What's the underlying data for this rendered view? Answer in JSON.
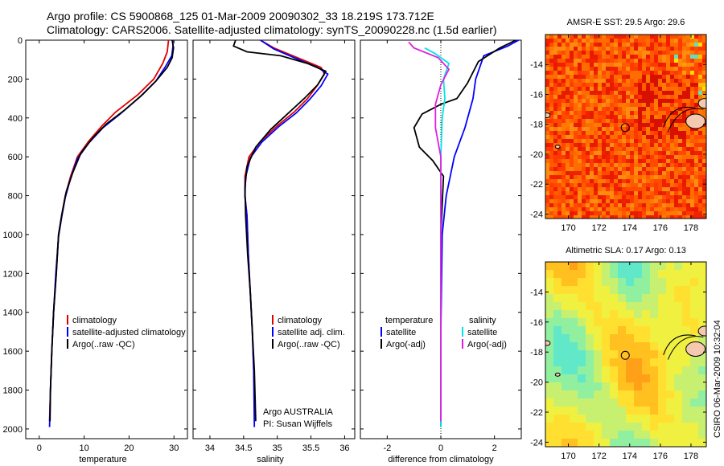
{
  "header": {
    "line1": "Argo profile: CS 5900868_125 01-Mar-2009 20090302_33 18.219S 173.712E",
    "line2": "Climatology: CARS2006. Satellite-adjusted climatology: synTS_20090228.nc (1.5d earlier)"
  },
  "footer": {
    "org": "Argo AUSTRALIA",
    "pi": "PI: Susan Wijffels",
    "credit": "CSIRO 06-Mar-2009 10:32:04"
  },
  "chart_data": [
    {
      "id": "temperature",
      "type": "line",
      "xlabel": "temperature",
      "xlim": [
        -3,
        33
      ],
      "ylim": [
        0,
        2050
      ],
      "xticks": [
        0,
        10,
        20,
        30
      ],
      "yticks": [
        0,
        200,
        400,
        600,
        800,
        1000,
        1200,
        1400,
        1600,
        1800,
        2000
      ],
      "legend": [
        "climatology",
        "satellite-adjusted climatology",
        "Argo(..raw -QC)"
      ],
      "series": [
        {
          "name": "climatology",
          "color": "#e00000",
          "points": [
            [
              28.8,
              0
            ],
            [
              28.5,
              60
            ],
            [
              27.5,
              120
            ],
            [
              25.5,
              200
            ],
            [
              22,
              280
            ],
            [
              17,
              370
            ],
            [
              14,
              440
            ],
            [
              11,
              520
            ],
            [
              8.5,
              600
            ],
            [
              7,
              700
            ],
            [
              5.8,
              800
            ],
            [
              5,
              900
            ],
            [
              4.3,
              1000
            ],
            [
              3.8,
              1200
            ],
            [
              3.2,
              1400
            ],
            [
              2.8,
              1600
            ],
            [
              2.5,
              1800
            ],
            [
              2.3,
              1960
            ]
          ]
        },
        {
          "name": "satellite-adjusted climatology",
          "color": "#0000ff",
          "points": [
            [
              29.7,
              0
            ],
            [
              29.8,
              30
            ],
            [
              29.5,
              80
            ],
            [
              28,
              140
            ],
            [
              26,
              210
            ],
            [
              22.5,
              290
            ],
            [
              18,
              380
            ],
            [
              14.2,
              450
            ],
            [
              11,
              530
            ],
            [
              8.5,
              610
            ],
            [
              7,
              710
            ],
            [
              5.8,
              810
            ],
            [
              5,
              910
            ],
            [
              4.3,
              1010
            ],
            [
              3.7,
              1200
            ],
            [
              3.2,
              1400
            ],
            [
              2.8,
              1600
            ],
            [
              2.5,
              1800
            ],
            [
              2.3,
              1990
            ]
          ]
        },
        {
          "name": "Argo(..raw -QC)",
          "color": "#000000",
          "points": [
            [
              29.6,
              0
            ],
            [
              29.9,
              40
            ],
            [
              29.6,
              90
            ],
            [
              28.5,
              140
            ],
            [
              26,
              210
            ],
            [
              23,
              280
            ],
            [
              19,
              360
            ],
            [
              15,
              430
            ],
            [
              12,
              500
            ],
            [
              9.3,
              580
            ],
            [
              7.5,
              680
            ],
            [
              6,
              780
            ],
            [
              5,
              900
            ],
            [
              4.3,
              1000
            ],
            [
              3.8,
              1200
            ],
            [
              3.2,
              1400
            ],
            [
              2.8,
              1600
            ],
            [
              2.5,
              1800
            ],
            [
              2.4,
              1960
            ]
          ]
        }
      ]
    },
    {
      "id": "salinity",
      "type": "line",
      "xlabel": "salinity",
      "xlim": [
        33.75,
        36.15
      ],
      "ylim": [
        0,
        2050
      ],
      "xticks": [
        34,
        34.5,
        35,
        35.5,
        36
      ],
      "legend": [
        "climatology",
        "satellite adj. clim.",
        "Argo(..raw -QC)"
      ],
      "series": [
        {
          "name": "climatology",
          "color": "#e00000",
          "points": [
            [
              34.75,
              0
            ],
            [
              34.95,
              40
            ],
            [
              35.3,
              90
            ],
            [
              35.65,
              140
            ],
            [
              35.7,
              175
            ],
            [
              35.6,
              230
            ],
            [
              35.45,
              300
            ],
            [
              35.25,
              370
            ],
            [
              35.0,
              440
            ],
            [
              34.75,
              520
            ],
            [
              34.58,
              600
            ],
            [
              34.52,
              700
            ],
            [
              34.52,
              800
            ],
            [
              34.55,
              900
            ],
            [
              34.57,
              1100
            ],
            [
              34.6,
              1300
            ],
            [
              34.63,
              1500
            ],
            [
              34.65,
              1700
            ],
            [
              34.67,
              1960
            ]
          ]
        },
        {
          "name": "satellite adj. clim.",
          "color": "#0000ff",
          "points": [
            [
              34.75,
              0
            ],
            [
              34.95,
              45
            ],
            [
              35.25,
              90
            ],
            [
              35.6,
              140
            ],
            [
              35.75,
              175
            ],
            [
              35.65,
              235
            ],
            [
              35.48,
              305
            ],
            [
              35.28,
              375
            ],
            [
              35.02,
              445
            ],
            [
              34.77,
              525
            ],
            [
              34.6,
              605
            ],
            [
              34.53,
              705
            ],
            [
              34.52,
              805
            ],
            [
              34.55,
              905
            ],
            [
              34.57,
              1105
            ],
            [
              34.6,
              1305
            ],
            [
              34.63,
              1505
            ],
            [
              34.65,
              1705
            ],
            [
              34.66,
              1990
            ]
          ]
        },
        {
          "name": "Argo(..raw -QC)",
          "color": "#000000",
          "points": [
            [
              34.38,
              0
            ],
            [
              34.35,
              30
            ],
            [
              34.55,
              60
            ],
            [
              35.05,
              80
            ],
            [
              35.45,
              120
            ],
            [
              35.72,
              160
            ],
            [
              35.6,
              230
            ],
            [
              35.4,
              300
            ],
            [
              35.15,
              380
            ],
            [
              34.9,
              460
            ],
            [
              34.68,
              550
            ],
            [
              34.55,
              650
            ],
            [
              34.52,
              760
            ],
            [
              34.53,
              900
            ],
            [
              34.56,
              1100
            ],
            [
              34.6,
              1300
            ],
            [
              34.63,
              1500
            ],
            [
              34.66,
              1700
            ],
            [
              34.68,
              1960
            ]
          ]
        }
      ]
    },
    {
      "id": "difference",
      "type": "line",
      "xlabel": "difference from climatology",
      "xlim": [
        -3,
        3
      ],
      "ylim": [
        0,
        2050
      ],
      "xticks": [
        -2,
        0,
        2
      ],
      "legend_left_title": "temperature",
      "legend_left": [
        "satellite",
        "Argo(-adj)"
      ],
      "legend_right_title": "salinity",
      "legend_right": [
        "satellite",
        "Argo(-adj)"
      ],
      "series": [
        {
          "name": "temperature satellite",
          "color": "#0000ff",
          "points": [
            [
              2.9,
              0
            ],
            [
              2.5,
              30
            ],
            [
              1.6,
              80
            ],
            [
              1.3,
              200
            ],
            [
              1.2,
              300
            ],
            [
              0.9,
              450
            ],
            [
              0.5,
              600
            ],
            [
              0.2,
              800
            ],
            [
              0.05,
              1000
            ],
            [
              0,
              1500
            ],
            [
              0,
              1990
            ]
          ]
        },
        {
          "name": "temperature Argo(-adj)",
          "color": "#000000",
          "points": [
            [
              2.8,
              0
            ],
            [
              2.2,
              40
            ],
            [
              1.4,
              110
            ],
            [
              1.0,
              220
            ],
            [
              0.6,
              300
            ],
            [
              0,
              330
            ],
            [
              -0.7,
              380
            ],
            [
              -1.0,
              450
            ],
            [
              -0.8,
              550
            ],
            [
              -0.3,
              620
            ],
            [
              0.1,
              700
            ],
            [
              0,
              1000
            ],
            [
              0,
              1600
            ],
            [
              0,
              1960
            ]
          ]
        },
        {
          "name": "salinity satellite",
          "color": "#00e5e5",
          "points": [
            [
              -0.6,
              40
            ],
            [
              -0.2,
              70
            ],
            [
              0.3,
              120
            ],
            [
              0.1,
              200
            ],
            [
              0.15,
              300
            ],
            [
              0.05,
              400
            ],
            [
              0,
              600
            ],
            [
              0,
              1000
            ],
            [
              0,
              1990
            ]
          ]
        },
        {
          "name": "salinity Argo(-adj)",
          "color": "#e020e0",
          "points": [
            [
              -1.2,
              10
            ],
            [
              -1.0,
              40
            ],
            [
              -0.1,
              90
            ],
            [
              0.3,
              150
            ],
            [
              0,
              230
            ],
            [
              -0.2,
              330
            ],
            [
              -0.2,
              450
            ],
            [
              0,
              600
            ],
            [
              0,
              1000
            ],
            [
              0,
              1960
            ]
          ]
        }
      ]
    },
    {
      "id": "sst_map",
      "type": "heatmap",
      "title": "AMSR-E SST: 29.5 Argo: 29.6",
      "xlim": [
        168.5,
        179
      ],
      "ylim": [
        -24.3,
        -12
      ],
      "xticks": [
        170,
        172,
        174,
        176,
        178
      ],
      "yticks": [
        -14,
        -16,
        -18,
        -20,
        -22,
        -24
      ],
      "marker": [
        173.712,
        -18.219
      ]
    },
    {
      "id": "sla_map",
      "type": "heatmap",
      "title": "Altimetric SLA: 0.17 Argo: 0.13",
      "xlim": [
        168.5,
        179
      ],
      "ylim": [
        -24.3,
        -12
      ],
      "xticks": [
        170,
        172,
        174,
        176,
        178
      ],
      "yticks": [
        -14,
        -16,
        -18,
        -20,
        -22,
        -24
      ],
      "marker": [
        173.712,
        -18.219
      ]
    }
  ]
}
